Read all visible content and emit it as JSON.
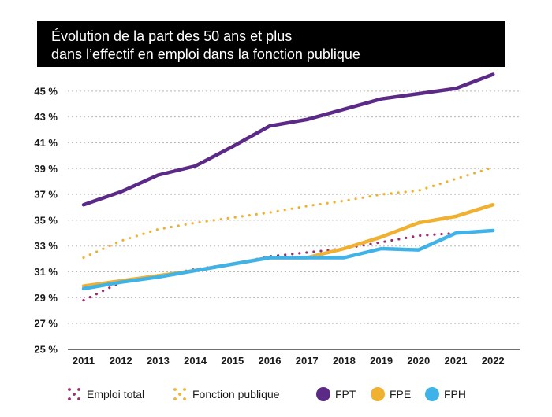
{
  "title": {
    "line1": "Évolution de la part des 50 ans et plus",
    "line2": "dans l’effectif en emploi dans la fonction publique"
  },
  "chart_data": {
    "type": "line",
    "x": [
      "2011",
      "2012",
      "2013",
      "2014",
      "2015",
      "2016",
      "2017",
      "2018",
      "2019",
      "2020",
      "2021",
      "2022"
    ],
    "ylim": [
      25,
      47
    ],
    "yticks": [
      25,
      27,
      29,
      31,
      33,
      35,
      37,
      39,
      41,
      43,
      45
    ],
    "ytick_labels": [
      "25 %",
      "27 %",
      "29 %",
      "31 %",
      "33 %",
      "35 %",
      "37 %",
      "39 %",
      "41 %",
      "43 %",
      "45 %"
    ],
    "grid": "horizontal dashed",
    "legend_position": "bottom",
    "series": [
      {
        "name": "Emploi total",
        "style": "dotted",
        "color": "#9b2a6e",
        "values": [
          28.8,
          30.2,
          30.7,
          31.2,
          31.6,
          32.2,
          32.5,
          32.8,
          33.3,
          33.8,
          34.0,
          34.2
        ]
      },
      {
        "name": "Fonction publique",
        "style": "dotted",
        "color": "#f0b030",
        "values": [
          32.1,
          33.4,
          34.3,
          34.8,
          35.2,
          35.6,
          36.1,
          36.5,
          37.0,
          37.3,
          38.2,
          39.1
        ]
      },
      {
        "name": "FPT",
        "style": "solid",
        "color": "#5b2a86",
        "values": [
          36.2,
          37.2,
          38.5,
          39.2,
          40.7,
          42.3,
          42.8,
          43.6,
          44.4,
          44.8,
          45.2,
          46.3
        ]
      },
      {
        "name": "FPE",
        "style": "solid",
        "color": "#f0b030",
        "values": [
          29.9,
          30.3,
          30.7,
          31.1,
          31.6,
          32.1,
          32.1,
          32.8,
          33.7,
          34.8,
          35.3,
          36.2
        ]
      },
      {
        "name": "FPH",
        "style": "solid",
        "color": "#3fb2e8",
        "values": [
          29.7,
          30.2,
          30.6,
          31.1,
          31.6,
          32.1,
          32.1,
          32.1,
          32.8,
          32.7,
          34.0,
          34.2
        ]
      }
    ]
  }
}
